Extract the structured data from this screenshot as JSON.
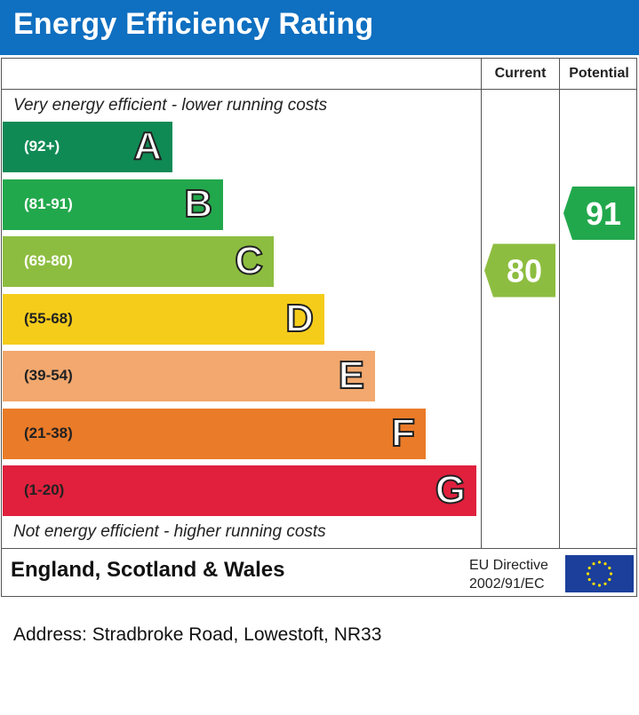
{
  "title": "Energy Efficiency Rating",
  "columns": {
    "current": "Current",
    "potential": "Potential"
  },
  "top_note": "Very energy efficient - lower running costs",
  "bottom_note": "Not energy efficient - higher running costs",
  "footer": {
    "region": "England, Scotland & Wales",
    "directive_line1": "EU Directive",
    "directive_line2": "2002/91/EC"
  },
  "address": "Address: Stradbroke Road, Lowestoft, NR33",
  "chart_data": {
    "type": "bar",
    "categories": [
      "A",
      "B",
      "C",
      "D",
      "E",
      "F",
      "G"
    ],
    "ranges": [
      "(92+)",
      "(81-91)",
      "(69-80)",
      "(55-68)",
      "(39-54)",
      "(21-38)",
      "(1-20)"
    ],
    "colors": [
      "#0f8a55",
      "#22a84c",
      "#8dbd40",
      "#f5cc1a",
      "#f2a86e",
      "#ea7b28",
      "#e0203d"
    ],
    "current": {
      "value": 80,
      "band": "C",
      "color": "#8dbd40"
    },
    "potential": {
      "value": 91,
      "band": "B",
      "color": "#22a84c"
    }
  }
}
